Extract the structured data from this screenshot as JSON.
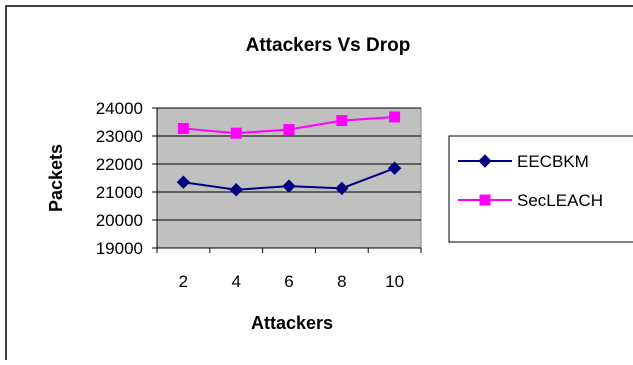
{
  "chart_data": {
    "type": "line",
    "title": "Attackers Vs Drop",
    "xlabel": "Attackers",
    "ylabel": "Packets",
    "categories": [
      "2",
      "4",
      "6",
      "8",
      "10"
    ],
    "yticks": [
      "19000",
      "20000",
      "21000",
      "22000",
      "23000",
      "24000"
    ],
    "ylim": [
      19000,
      24000
    ],
    "grid": true,
    "plot_background": "#c0c0c0",
    "legend_position": "right",
    "series": [
      {
        "name": "EECBKM",
        "values": [
          21350,
          21080,
          21210,
          21130,
          21850
        ],
        "color": "#000080",
        "marker": "diamond"
      },
      {
        "name": "SecLEACH",
        "values": [
          23270,
          23100,
          23230,
          23550,
          23680
        ],
        "color": "#ff00ff",
        "marker": "square"
      }
    ]
  }
}
